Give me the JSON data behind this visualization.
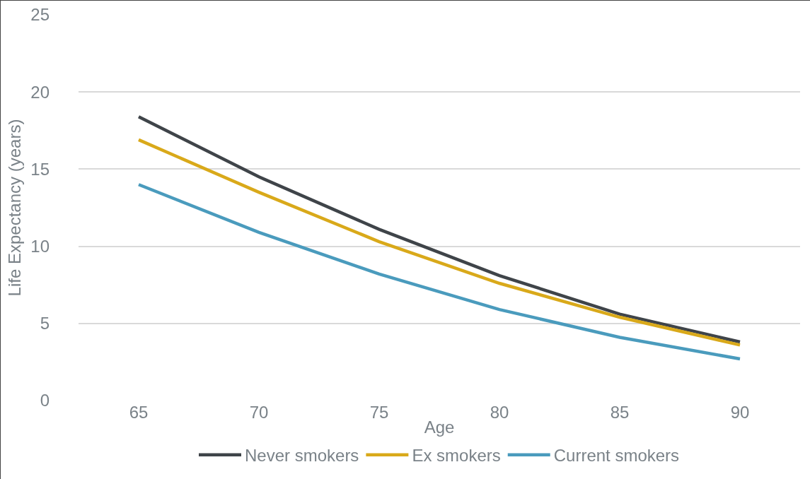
{
  "chart_data": {
    "type": "line",
    "xlabel": "Age",
    "ylabel": "Life Expectancy (years)",
    "categories": [
      "65",
      "70",
      "75",
      "80",
      "85",
      "90"
    ],
    "series": [
      {
        "name": "Never smokers",
        "color": "#3f4449",
        "values": [
          18.4,
          14.5,
          11.1,
          8.1,
          5.6,
          3.8
        ]
      },
      {
        "name": "Ex smokers",
        "color": "#d9a91a",
        "values": [
          16.9,
          13.5,
          10.3,
          7.6,
          5.4,
          3.6
        ]
      },
      {
        "name": "Current smokers",
        "color": "#4a9bbd",
        "values": [
          14.0,
          10.9,
          8.2,
          5.9,
          4.1,
          2.7
        ]
      }
    ],
    "ylim": [
      0,
      25
    ],
    "yticks": [
      0,
      5,
      10,
      15,
      20,
      25
    ],
    "grid": "y",
    "legend": "bottom",
    "marker": "none",
    "line_style": "solid"
  }
}
